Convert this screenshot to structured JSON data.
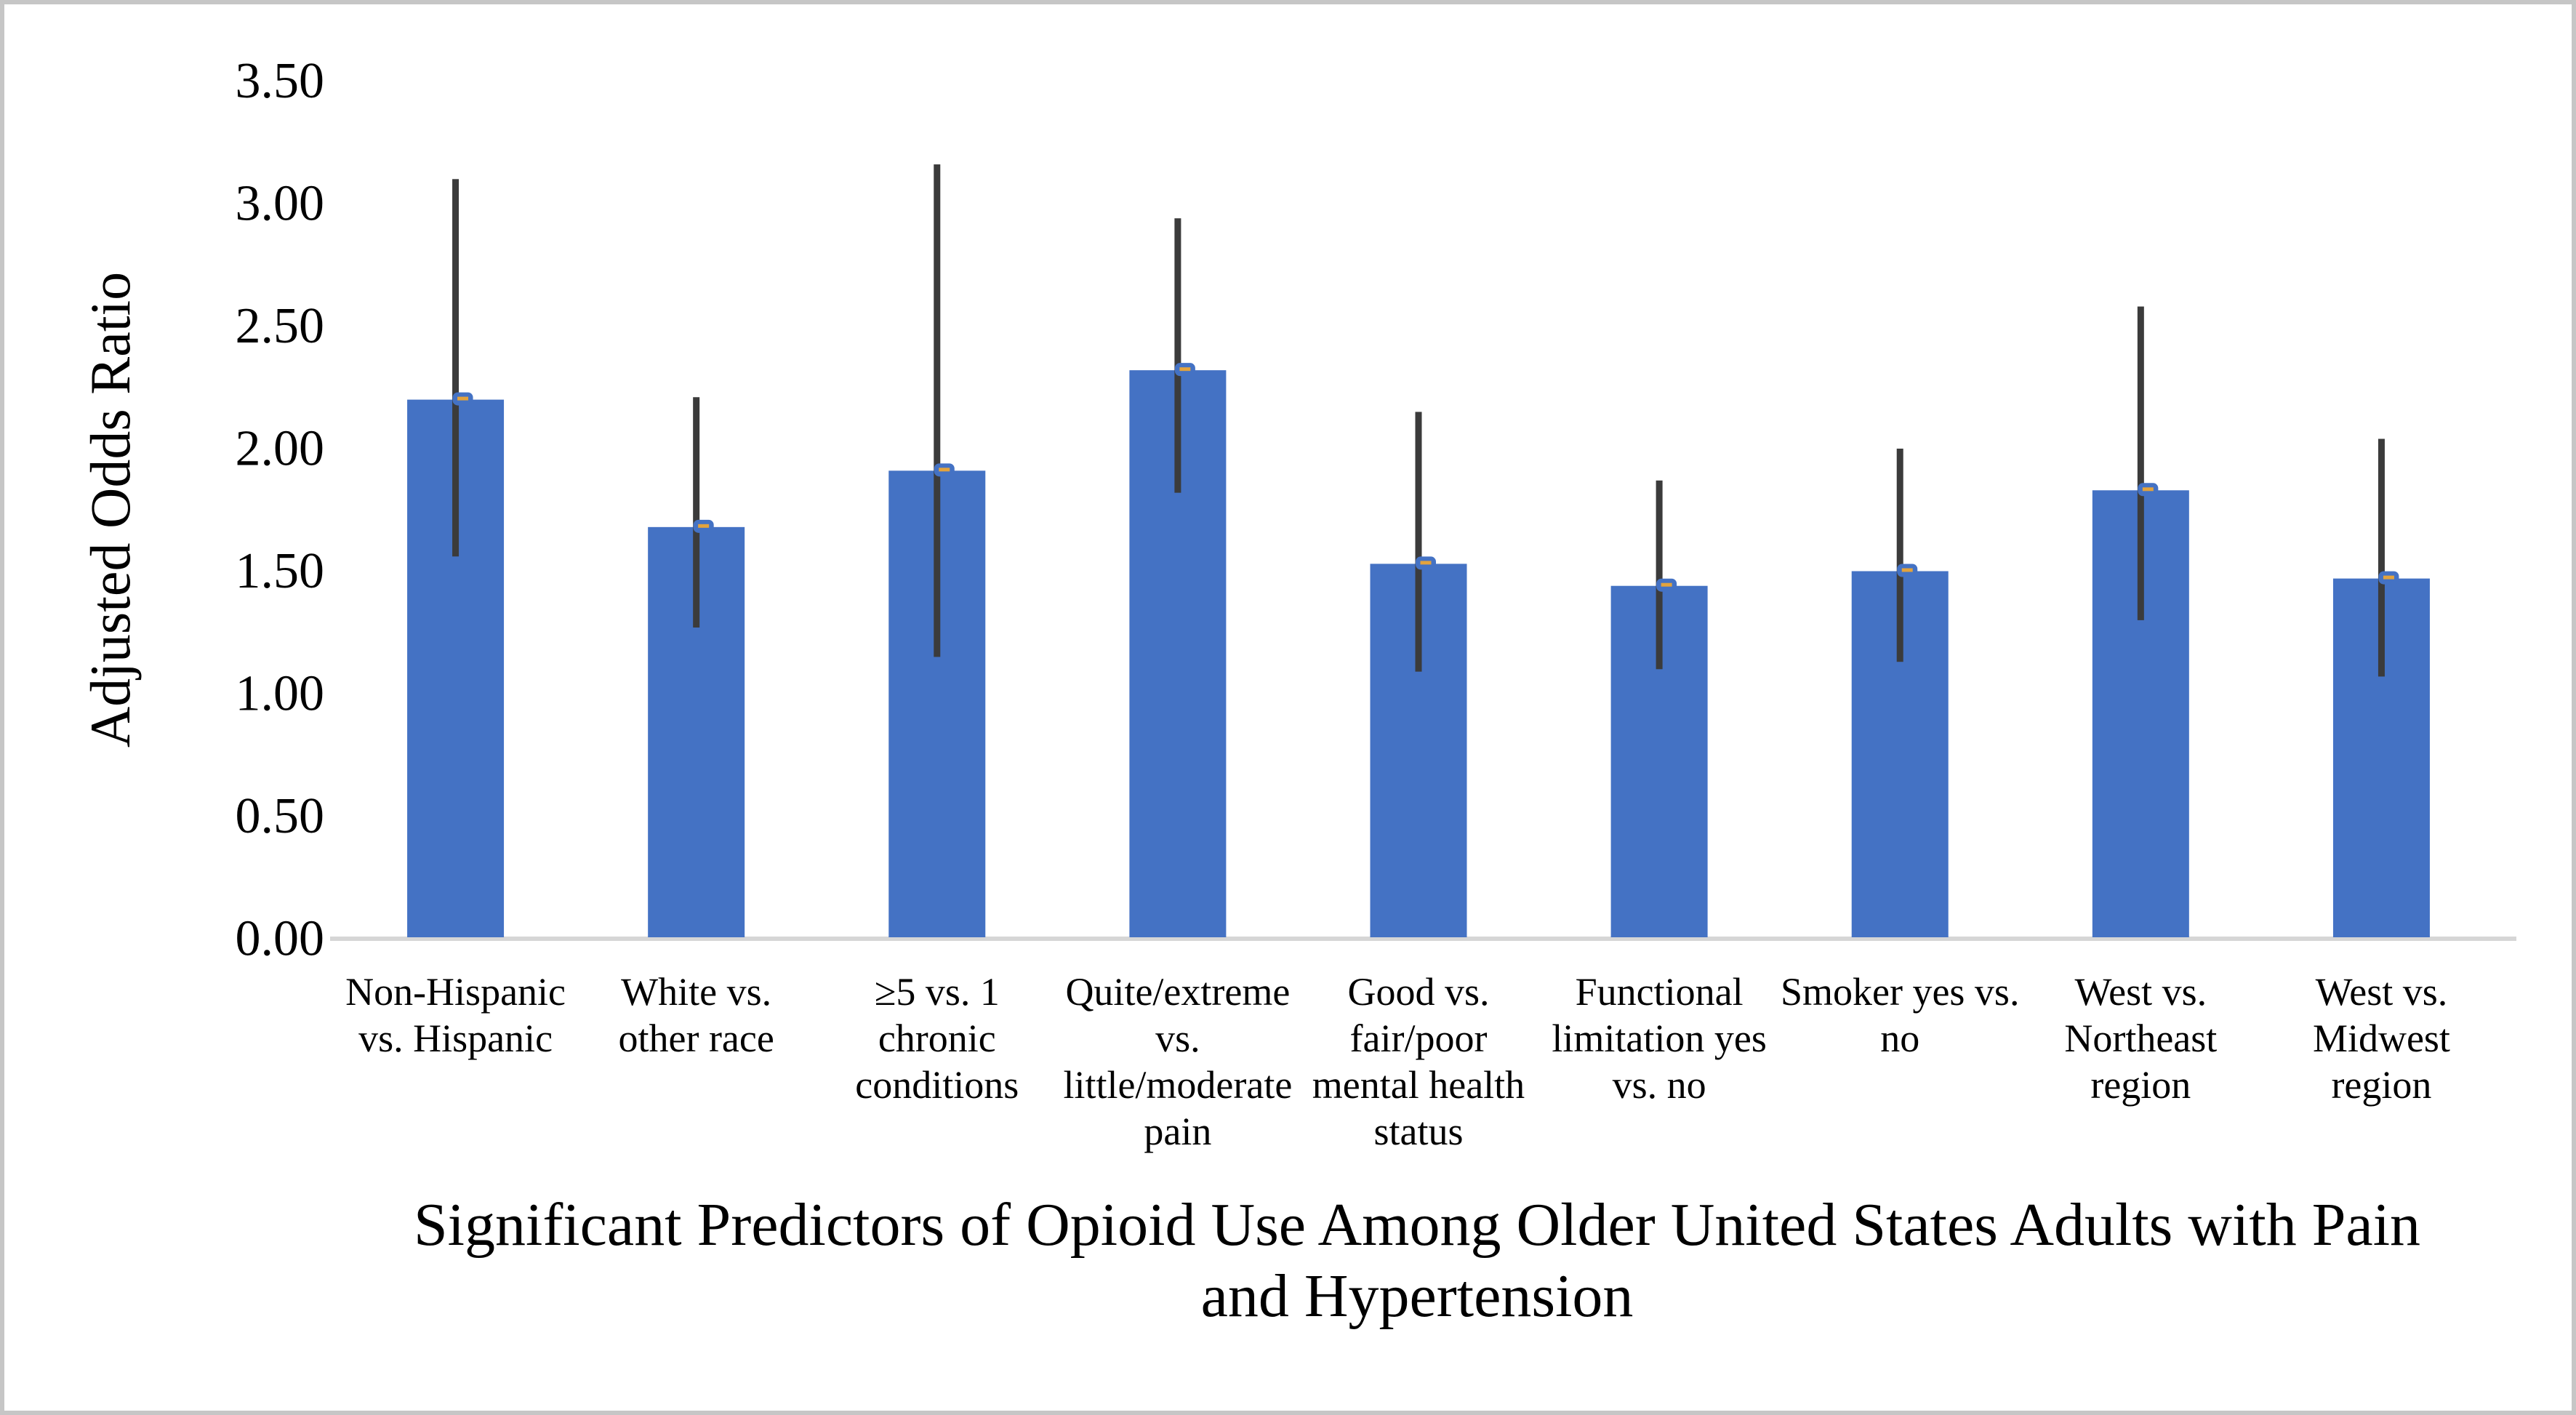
{
  "figure": {
    "background": "#ffffff",
    "border_color": "#c6c6c6"
  },
  "chart_data": {
    "type": "bar",
    "title": "Significant Predictors of Opioid Use Among Older United States Adults with Pain and Hypertension",
    "title_lines": [
      "Significant Predictors of Opioid Use Among Older United States Adults with Pain",
      "and Hypertension"
    ],
    "ylabel": "Adjusted Odds Ratio",
    "xlabel": "",
    "ylim": [
      0,
      3.5
    ],
    "ytick_step": 0.5,
    "ytick_labels": [
      "3.50",
      "3.00",
      "2.50",
      "2.00",
      "1.50",
      "1.00",
      "0.50",
      "0.00"
    ],
    "ytick_values": [
      3.5,
      3.0,
      2.5,
      2.0,
      1.5,
      1.0,
      0.5,
      0.0
    ],
    "grid": false,
    "legend": null,
    "categories": [
      "Non-Hispanic vs. Hispanic",
      "White vs. other race",
      "≥5 vs. 1 chronic conditions",
      "Quite/extreme vs. little/moderate pain",
      "Good vs. fair/poor mental health status",
      "Functional limitation yes vs. no",
      "Smoker yes vs. no",
      "West vs. Northeast region",
      "West vs. Midwest region"
    ],
    "category_label_lines": [
      [
        "Non-Hispanic",
        "vs. Hispanic"
      ],
      [
        "White vs.",
        "other race"
      ],
      [
        "≥5 vs. 1",
        "chronic",
        "conditions"
      ],
      [
        "Quite/extreme",
        "vs.",
        "little/moderate",
        "pain"
      ],
      [
        "Good vs.",
        "fair/poor",
        "mental health",
        "status"
      ],
      [
        "Functional",
        "limitation yes",
        "vs. no"
      ],
      [
        "Smoker yes vs.",
        "no"
      ],
      [
        "West vs.",
        "Northeast",
        "region"
      ],
      [
        "West vs.",
        "Midwest",
        "region"
      ]
    ],
    "series": [
      {
        "name": "Adjusted Odds Ratio",
        "values": [
          2.2,
          1.68,
          1.91,
          2.32,
          1.53,
          1.44,
          1.5,
          1.83,
          1.47
        ],
        "ci_low": [
          1.56,
          1.27,
          1.15,
          1.82,
          1.09,
          1.1,
          1.13,
          1.3,
          1.07
        ],
        "ci_high": [
          3.1,
          2.21,
          3.16,
          2.94,
          2.15,
          1.87,
          2.0,
          2.58,
          2.04
        ]
      }
    ],
    "colors": {
      "bar": "#4472c4",
      "error_bar": "#3b3b3b",
      "marker_cap": "#4472c4",
      "marker_dash": "#e3a33d",
      "axis_line": "#d6d6d6"
    }
  }
}
